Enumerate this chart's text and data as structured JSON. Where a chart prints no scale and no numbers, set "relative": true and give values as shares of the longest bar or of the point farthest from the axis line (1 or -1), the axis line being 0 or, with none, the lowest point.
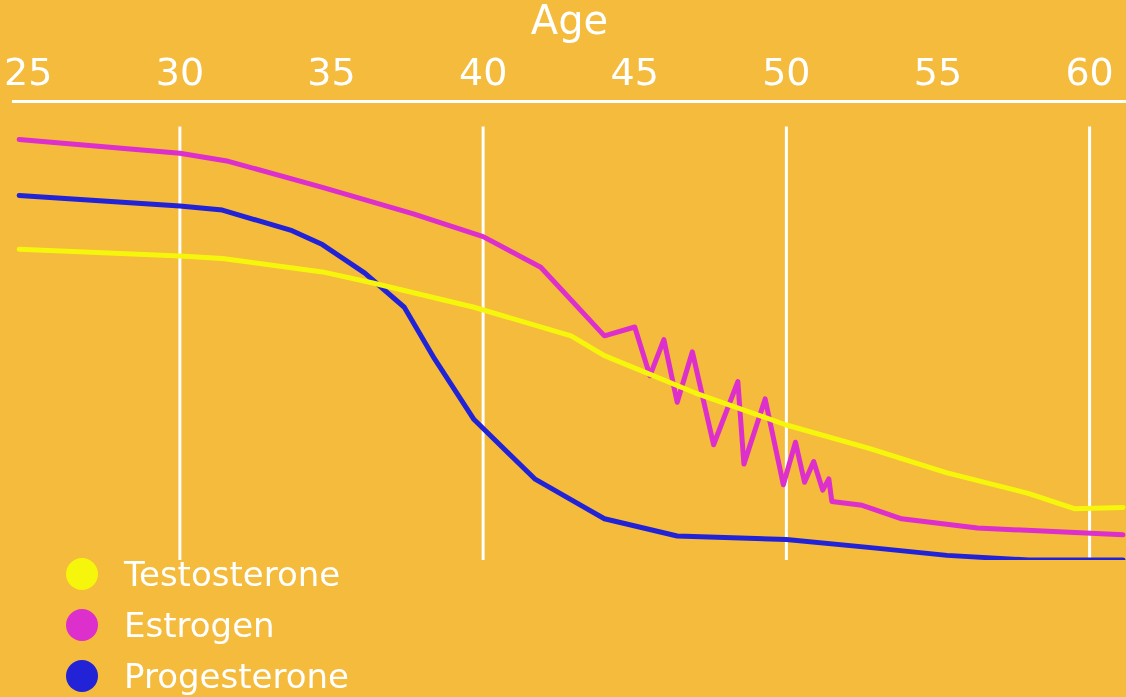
{
  "chart_data": {
    "type": "line",
    "relative": true,
    "xlabel": "Age",
    "xlim": [
      24.5,
      61.2
    ],
    "xticks": [
      25,
      30,
      35,
      40,
      45,
      50,
      55,
      60
    ],
    "grid": false,
    "legend": "bottom left",
    "marker": "none",
    "line_style": "solid",
    "ref_lines": [
      {
        "axis": "x",
        "value": 30,
        "color": "#ffffff"
      },
      {
        "axis": "x",
        "value": 40,
        "color": "#ffffff"
      },
      {
        "axis": "x",
        "value": 50,
        "color": "#ffffff"
      },
      {
        "axis": "x",
        "value": 60,
        "color": "#ffffff"
      }
    ],
    "series": [
      {
        "name": "Testosterone",
        "color": "#f6f60c",
        "x": [
          24.7,
          30.0,
          31.4,
          34.7,
          36.4,
          39.7,
          42.9,
          44.0,
          47.0,
          50.0,
          52.7,
          55.3,
          58.0,
          59.5,
          61.1
        ],
        "values": [
          0.739,
          0.723,
          0.717,
          0.685,
          0.658,
          0.601,
          0.533,
          0.486,
          0.397,
          0.321,
          0.266,
          0.207,
          0.158,
          0.122,
          0.125
        ]
      },
      {
        "name": "Estrogen",
        "color": "#dc2fcc",
        "x": [
          24.7,
          30.0,
          31.6,
          34.7,
          37.7,
          40.0,
          41.9,
          44.0,
          45.0,
          45.5,
          45.96,
          46.4,
          46.9,
          47.6,
          48.4,
          48.6,
          49.3,
          49.9,
          50.3,
          50.6,
          50.9,
          51.2,
          51.4,
          51.5,
          52.5,
          53.8,
          56.3,
          61.1
        ],
        "values": [
          1.0,
          0.967,
          0.948,
          0.886,
          0.823,
          0.769,
          0.696,
          0.533,
          0.554,
          0.438,
          0.524,
          0.375,
          0.495,
          0.274,
          0.424,
          0.228,
          0.383,
          0.179,
          0.28,
          0.185,
          0.234,
          0.166,
          0.193,
          0.139,
          0.13,
          0.098,
          0.076,
          0.06
        ]
      },
      {
        "name": "Progesterone",
        "color": "#2222d6",
        "x": [
          24.7,
          30.0,
          31.4,
          33.7,
          34.7,
          36.1,
          37.4,
          38.4,
          39.7,
          41.7,
          44.0,
          46.4,
          50.0,
          52.7,
          55.3,
          58.0,
          61.1
        ],
        "values": [
          0.867,
          0.842,
          0.832,
          0.783,
          0.75,
          0.682,
          0.601,
          0.478,
          0.334,
          0.193,
          0.098,
          0.057,
          0.049,
          0.03,
          0.011,
          0.0,
          0.0
        ]
      }
    ]
  }
}
